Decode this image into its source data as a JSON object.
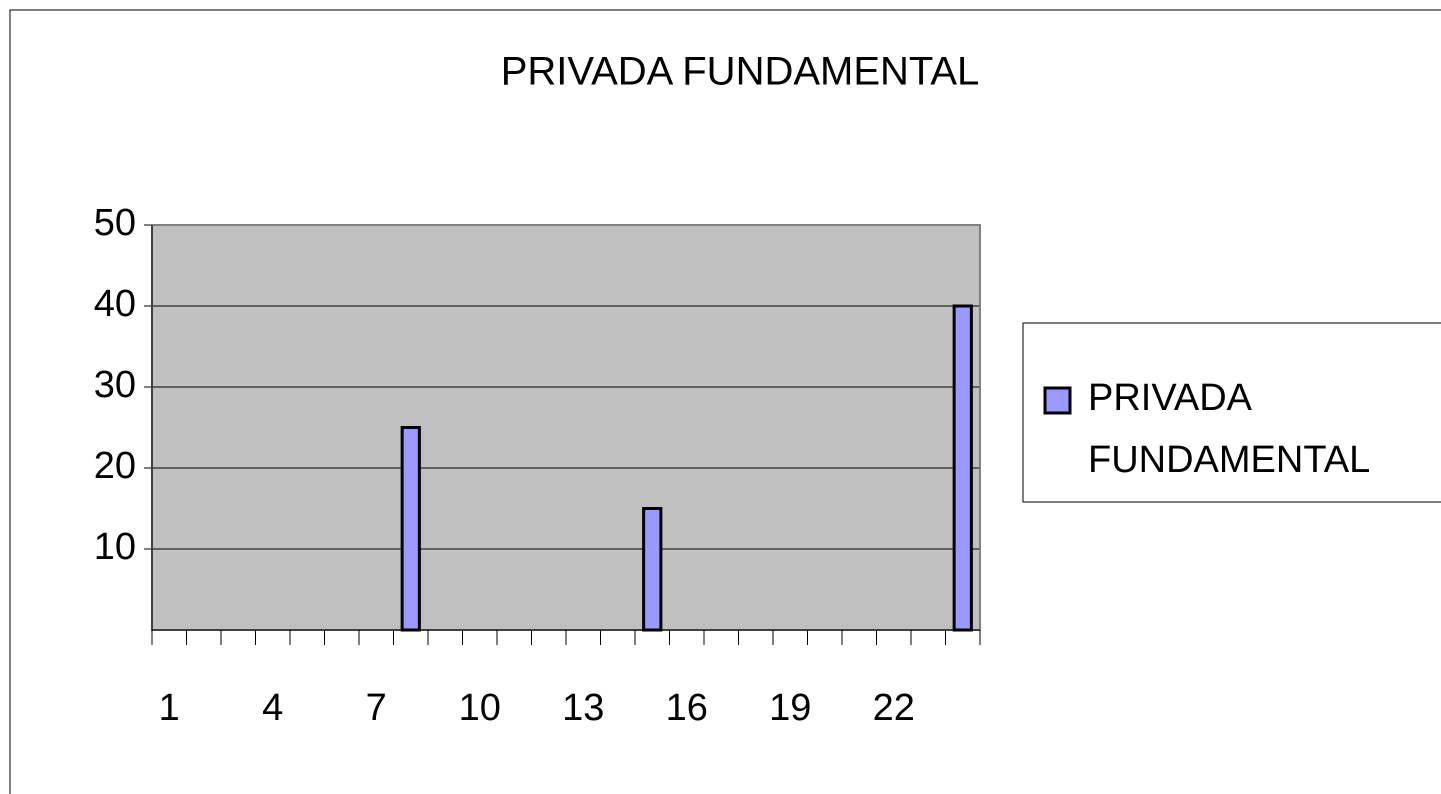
{
  "chart_data": {
    "type": "bar",
    "title": "PRIVADA FUNDAMENTAL",
    "categories": [
      "1",
      null,
      null,
      "4",
      null,
      null,
      "7",
      null,
      null,
      "10",
      null,
      null,
      "13",
      null,
      null,
      "16",
      null,
      null,
      "19",
      null,
      null,
      "22",
      null,
      null
    ],
    "series": [
      {
        "name": "PRIVADA FUNDAMENTAL",
        "color": "#9999ff",
        "values": [
          null,
          null,
          null,
          null,
          null,
          null,
          null,
          25,
          null,
          null,
          null,
          null,
          null,
          null,
          15,
          null,
          null,
          null,
          null,
          null,
          null,
          null,
          null,
          40
        ]
      }
    ],
    "ylim": [
      0,
      50
    ],
    "yticks": [
      10,
      20,
      30,
      40,
      50
    ],
    "grid": true,
    "legend": "right"
  }
}
